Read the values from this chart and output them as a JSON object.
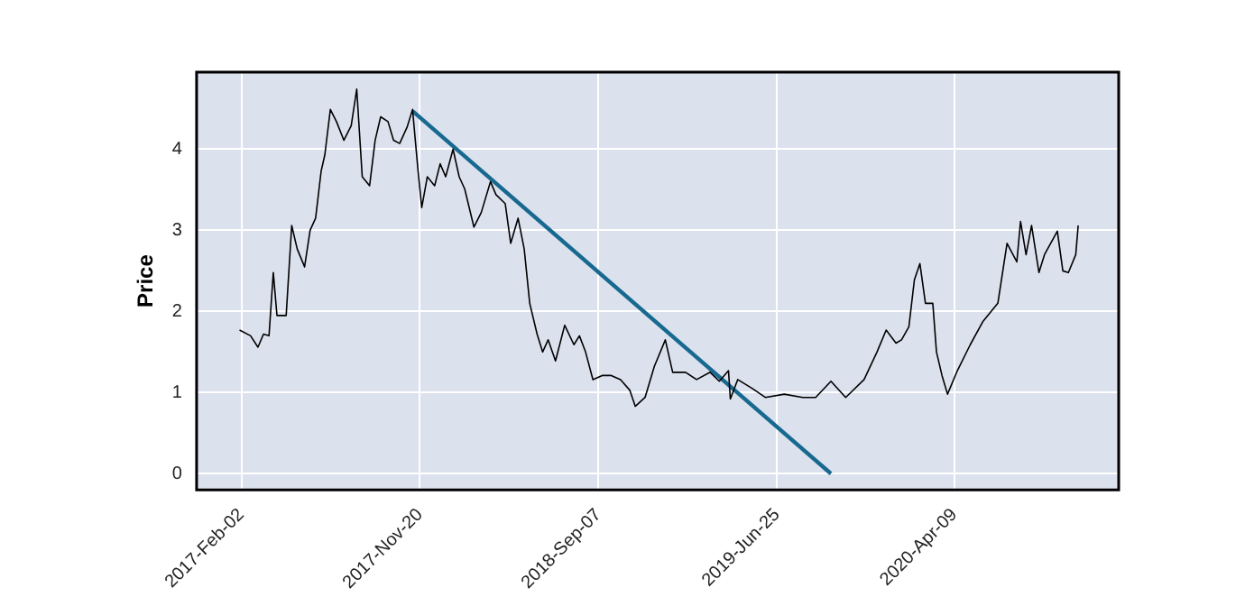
{
  "chart_data": {
    "type": "line",
    "ylabel": "Price",
    "xlim": [
      "2016-11-21",
      "2021-01-02"
    ],
    "ylim": [
      -0.2,
      4.95
    ],
    "xticks": [
      {
        "value": "2017-02-02",
        "label": "2017-Feb-02"
      },
      {
        "value": "2017-11-20",
        "label": "2017-Nov-20"
      },
      {
        "value": "2018-09-07",
        "label": "2018-Sep-07"
      },
      {
        "value": "2019-06-25",
        "label": "2019-Jun-25"
      },
      {
        "value": "2020-04-09",
        "label": "2020-Apr-09"
      }
    ],
    "yticks": [
      0,
      1,
      2,
      3,
      4
    ],
    "grid": true,
    "legend": false,
    "marker": "none",
    "line_style": "solid",
    "series": [
      {
        "type": "line",
        "color": "#000000",
        "x": [
          "2017-01-30",
          "2017-02-17",
          "2017-03-01",
          "2017-03-10",
          "2017-03-19",
          "2017-03-26",
          "2017-04-01",
          "2017-04-16",
          "2017-04-25",
          "2017-05-04",
          "2017-05-16",
          "2017-05-25",
          "2017-06-03",
          "2017-06-12",
          "2017-06-18",
          "2017-06-27",
          "2017-07-07",
          "2017-07-19",
          "2017-07-31",
          "2017-08-09",
          "2017-08-18",
          "2017-08-30",
          "2017-09-08",
          "2017-09-17",
          "2017-09-29",
          "2017-10-08",
          "2017-10-18",
          "2017-10-30",
          "2017-11-08",
          "2017-11-17",
          "2017-11-23",
          "2017-12-02",
          "2017-12-14",
          "2017-12-23",
          "2018-01-01",
          "2018-01-13",
          "2018-01-23",
          "2018-02-01",
          "2018-02-16",
          "2018-02-28",
          "2018-03-15",
          "2018-03-24",
          "2018-04-08",
          "2018-04-17",
          "2018-04-29",
          "2018-05-09",
          "2018-05-18",
          "2018-05-30",
          "2018-06-08",
          "2018-06-17",
          "2018-06-29",
          "2018-07-14",
          "2018-07-29",
          "2018-08-07",
          "2018-08-17",
          "2018-08-29",
          "2018-09-13",
          "2018-09-28",
          "2018-10-13",
          "2018-10-28",
          "2018-11-06",
          "2018-11-22",
          "2018-12-07",
          "2018-12-25",
          "2019-01-06",
          "2019-01-27",
          "2019-02-14",
          "2019-03-08",
          "2019-03-23",
          "2019-04-07",
          "2019-04-10",
          "2019-04-22",
          "2019-05-16",
          "2019-06-06",
          "2019-07-07",
          "2019-08-06",
          "2019-08-27",
          "2019-09-21",
          "2019-10-15",
          "2019-11-14",
          "2019-12-05",
          "2019-12-20",
          "2020-01-05",
          "2020-01-14",
          "2020-01-26",
          "2020-02-04",
          "2020-02-13",
          "2020-02-22",
          "2020-03-05",
          "2020-03-11",
          "2020-03-20",
          "2020-03-29",
          "2020-04-14",
          "2020-05-05",
          "2020-05-26",
          "2020-06-19",
          "2020-07-04",
          "2020-07-20",
          "2020-07-26",
          "2020-08-04",
          "2020-08-13",
          "2020-08-25",
          "2020-09-03",
          "2020-09-24",
          "2020-10-03",
          "2020-10-12",
          "2020-10-24",
          "2020-10-28"
        ],
        "values": [
          1.77,
          1.7,
          1.56,
          1.72,
          1.7,
          2.48,
          1.95,
          1.95,
          3.06,
          2.77,
          2.55,
          3.0,
          3.15,
          3.73,
          3.93,
          4.49,
          4.34,
          4.11,
          4.29,
          4.74,
          3.66,
          3.55,
          4.11,
          4.4,
          4.34,
          4.11,
          4.07,
          4.27,
          4.49,
          3.73,
          3.28,
          3.66,
          3.55,
          3.82,
          3.66,
          4.0,
          3.66,
          3.51,
          3.04,
          3.22,
          3.6,
          3.44,
          3.33,
          2.84,
          3.15,
          2.77,
          2.1,
          1.72,
          1.5,
          1.65,
          1.39,
          1.83,
          1.59,
          1.7,
          1.5,
          1.16,
          1.21,
          1.21,
          1.16,
          1.03,
          0.83,
          0.94,
          1.32,
          1.65,
          1.25,
          1.25,
          1.16,
          1.25,
          1.14,
          1.27,
          0.92,
          1.16,
          1.05,
          0.94,
          0.98,
          0.94,
          0.94,
          1.14,
          0.94,
          1.16,
          1.5,
          1.77,
          1.61,
          1.65,
          1.81,
          2.39,
          2.59,
          2.1,
          2.1,
          1.5,
          1.21,
          0.98,
          1.27,
          1.59,
          1.88,
          2.1,
          2.84,
          2.61,
          3.11,
          2.7,
          3.06,
          2.48,
          2.7,
          2.99,
          2.5,
          2.48,
          2.7,
          3.06
        ]
      },
      {
        "type": "line",
        "color": "#17698f",
        "x": [
          "2017-11-08",
          "2019-09-21"
        ],
        "values": [
          4.47,
          0
        ]
      }
    ]
  }
}
